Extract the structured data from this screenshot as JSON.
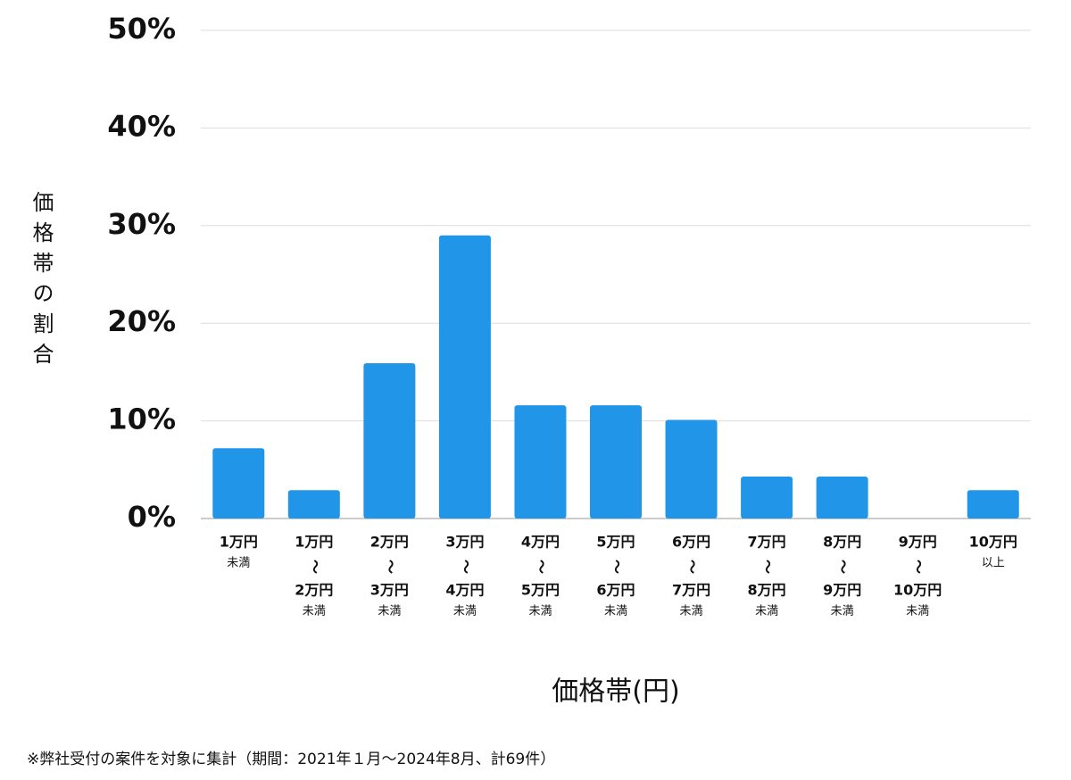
{
  "chart_data": {
    "type": "bar",
    "y_label": "価格帯の割合",
    "x_label": "価格帯(円)",
    "note": "※弊社受付の案件を対象に集計（期間：2021年１月〜2024年8月、計69件）",
    "categories": [
      [
        "1万円",
        "未満"
      ],
      [
        "1万円",
        "〜",
        "2万円",
        "未満"
      ],
      [
        "2万円",
        "〜",
        "3万円",
        "未満"
      ],
      [
        "3万円",
        "〜",
        "4万円",
        "未満"
      ],
      [
        "4万円",
        "〜",
        "5万円",
        "未満"
      ],
      [
        "5万円",
        "〜",
        "6万円",
        "未満"
      ],
      [
        "6万円",
        "〜",
        "7万円",
        "未満"
      ],
      [
        "7万円",
        "〜",
        "8万円",
        "未満"
      ],
      [
        "8万円",
        "〜",
        "9万円",
        "未満"
      ],
      [
        "9万円",
        "〜",
        "10万円",
        "未満"
      ],
      [
        "10万円",
        "以上"
      ]
    ],
    "values": [
      7.2,
      2.9,
      15.9,
      29.0,
      11.6,
      11.6,
      10.1,
      4.3,
      4.3,
      0,
      2.9
    ],
    "color": "#2196e8",
    "ylim": [
      0,
      50
    ],
    "yticks": [
      {
        "value": 0,
        "label": "0%"
      },
      {
        "value": 10,
        "label": "10%"
      },
      {
        "value": 20,
        "label": "20%"
      },
      {
        "value": 30,
        "label": "30%"
      },
      {
        "value": 40,
        "label": "40%"
      },
      {
        "value": 50,
        "label": "50%"
      }
    ],
    "grid": true
  }
}
